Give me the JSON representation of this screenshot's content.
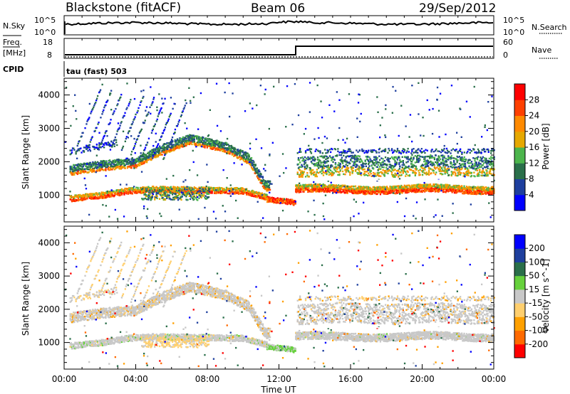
{
  "header": {
    "station": "Blackstone (fitACF)",
    "beam": "Beam 06",
    "date": "29/Sep/2012"
  },
  "panels": {
    "nsky": {
      "label": "N.Sky",
      "top_tick": "10^5",
      "bottom_tick": "10^0",
      "right_label": "N.Search",
      "right_top_tick": "10^5",
      "right_bottom_tick": "10^0"
    },
    "freq": {
      "label_top": "Freq.",
      "label_bottom": "[MHz]",
      "ticks": [
        "18",
        "8"
      ],
      "right_label": "Nave",
      "right_ticks": [
        "60",
        "0"
      ]
    },
    "cpid": {
      "label": "CPID",
      "text": "tau (fast) 503"
    }
  },
  "colors": {
    "power": [
      "#0000ff",
      "#1e3f9e",
      "#2a6f4a",
      "#4cb54c",
      "#e6a800",
      "#ff8a00",
      "#ff4000",
      "#ff0000"
    ],
    "velocity": [
      "#ff0000",
      "#ff6a00",
      "#ffa000",
      "#ffcf6e",
      "#c8c8c8",
      "#66d13c",
      "#2a6f4a",
      "#1e3f9e",
      "#0000ff"
    ]
  },
  "chart_data": [
    {
      "type": "heatmap",
      "title": "",
      "xlabel": "",
      "ylabel": "Slant Range [km]",
      "yticks": [
        "1000",
        "2000",
        "3000",
        "4000"
      ],
      "ylim": [
        200,
        4500
      ],
      "xlim": [
        0,
        24
      ],
      "colorbar": {
        "label": "Power [dB]",
        "ticks": [
          "4",
          "8",
          "12",
          "16",
          "20",
          "24",
          "28"
        ],
        "range": [
          0,
          32
        ]
      }
    },
    {
      "type": "heatmap",
      "title": "",
      "xlabel": "Time UT",
      "ylabel": "Slant Range [km]",
      "yticks": [
        "1000",
        "2000",
        "3000",
        "4000"
      ],
      "xticks": [
        "00:00",
        "04:00",
        "08:00",
        "12:00",
        "16:00",
        "20:00",
        "00:00"
      ],
      "ylim": [
        200,
        4500
      ],
      "xlim": [
        0,
        24
      ],
      "colorbar": {
        "label": "Velocity [m s^-1]",
        "ticks": [
          "200",
          "100",
          "50",
          "15",
          "-15",
          "-50",
          "-100",
          "-200"
        ]
      }
    }
  ]
}
